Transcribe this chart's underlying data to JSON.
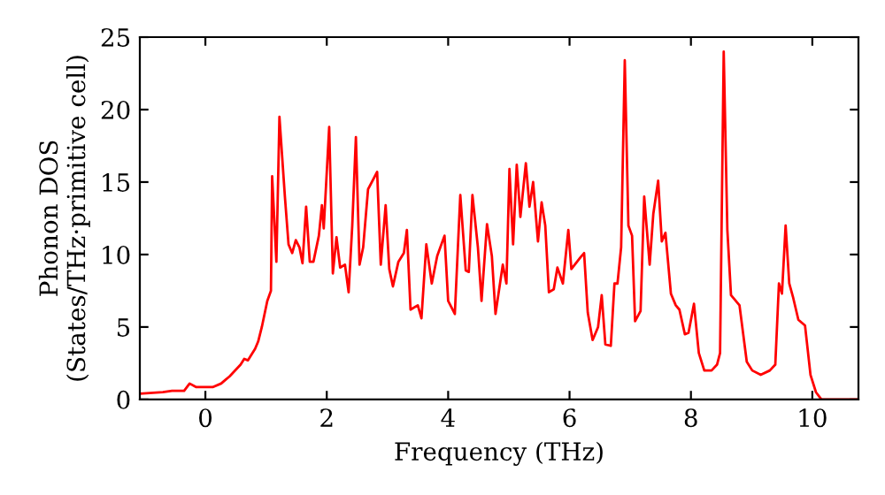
{
  "chart_data": {
    "type": "line",
    "xlabel": "Frequency (THz)",
    "ylabel": "Phonon DOS\n(States/THz·primitive cell)",
    "xlim": [
      -1.08,
      10.76
    ],
    "ylim": [
      0,
      25
    ],
    "xticks": [
      0,
      2,
      4,
      6,
      8,
      10
    ],
    "yticks": [
      0,
      5,
      10,
      15,
      20,
      25
    ],
    "grid": false,
    "legend": false,
    "series": [
      {
        "color": "#ff0000",
        "x": [
          -1.08,
          -0.7,
          -0.55,
          -0.35,
          -0.26,
          -0.15,
          0.12,
          0.26,
          0.4,
          0.58,
          0.64,
          0.7,
          0.82,
          0.87,
          0.93,
          1.02,
          1.08,
          1.1,
          1.17,
          1.22,
          1.31,
          1.37,
          1.43,
          1.49,
          1.55,
          1.6,
          1.66,
          1.72,
          1.78,
          1.87,
          1.92,
          1.95,
          2.04,
          2.1,
          2.16,
          2.22,
          2.3,
          2.36,
          2.42,
          2.48,
          2.54,
          2.6,
          2.68,
          2.83,
          2.89,
          2.97,
          3.03,
          3.09,
          3.18,
          3.27,
          3.32,
          3.38,
          3.5,
          3.56,
          3.64,
          3.73,
          3.82,
          3.94,
          4.0,
          4.11,
          4.2,
          4.29,
          4.34,
          4.4,
          4.49,
          4.55,
          4.64,
          4.72,
          4.78,
          4.9,
          4.96,
          5.01,
          5.07,
          5.13,
          5.19,
          5.28,
          5.34,
          5.4,
          5.48,
          5.54,
          5.6,
          5.66,
          5.74,
          5.8,
          5.89,
          5.98,
          6.03,
          6.18,
          6.24,
          6.3,
          6.38,
          6.47,
          6.53,
          6.59,
          6.68,
          6.74,
          6.79,
          6.85,
          6.91,
          6.97,
          7.03,
          7.08,
          7.17,
          7.23,
          7.32,
          7.38,
          7.46,
          7.52,
          7.58,
          7.67,
          7.75,
          7.81,
          7.9,
          7.96,
          8.05,
          8.13,
          8.22,
          8.34,
          8.43,
          8.48,
          8.54,
          8.6,
          8.66,
          8.8,
          8.92,
          9.01,
          9.15,
          9.3,
          9.39,
          9.45,
          9.5,
          9.56,
          9.62,
          9.68,
          9.77,
          9.88,
          9.97,
          10.06,
          10.15,
          10.76
        ],
        "values": [
          0.4,
          0.5,
          0.6,
          0.6,
          1.1,
          0.85,
          0.85,
          1.1,
          1.6,
          2.4,
          2.8,
          2.7,
          3.5,
          4.0,
          5.0,
          6.8,
          7.5,
          15.4,
          9.5,
          19.5,
          14,
          10.7,
          10.1,
          11,
          10.5,
          9.4,
          13.3,
          9.5,
          9.5,
          11.3,
          13.4,
          11.8,
          18.8,
          8.7,
          11.2,
          9.1,
          9.3,
          7.4,
          12.0,
          18.1,
          9.3,
          10.5,
          14.5,
          15.7,
          9.3,
          13.4,
          9.0,
          7.8,
          9.5,
          10.1,
          11.7,
          6.2,
          6.5,
          5.6,
          10.7,
          8.0,
          9.9,
          11.3,
          6.8,
          5.9,
          14.1,
          8.9,
          8.8,
          14.1,
          10.5,
          6.8,
          12.1,
          9.9,
          5.9,
          9.3,
          8.0,
          15.9,
          10.7,
          16.2,
          12.6,
          16.3,
          13.3,
          15.0,
          10.9,
          13.6,
          12.0,
          7.4,
          7.6,
          9.1,
          8.0,
          11.7,
          9.0,
          9.8,
          10.1,
          6.0,
          4.1,
          5.0,
          7.2,
          3.8,
          3.7,
          8.0,
          8.0,
          10.5,
          23.4,
          12.0,
          11.3,
          5.4,
          6.1,
          14.0,
          9.3,
          12.8,
          15.1,
          10.9,
          11.5,
          7.3,
          6.5,
          6.2,
          4.5,
          4.6,
          6.6,
          3.2,
          2.0,
          2.0,
          2.4,
          3.2,
          24.0,
          11.7,
          7.2,
          6.5,
          2.6,
          2.0,
          1.7,
          2.0,
          2.4,
          8.0,
          7.3,
          12.0,
          8.0,
          7.1,
          5.5,
          5.1,
          1.7,
          0.5,
          0,
          0
        ]
      }
    ]
  }
}
